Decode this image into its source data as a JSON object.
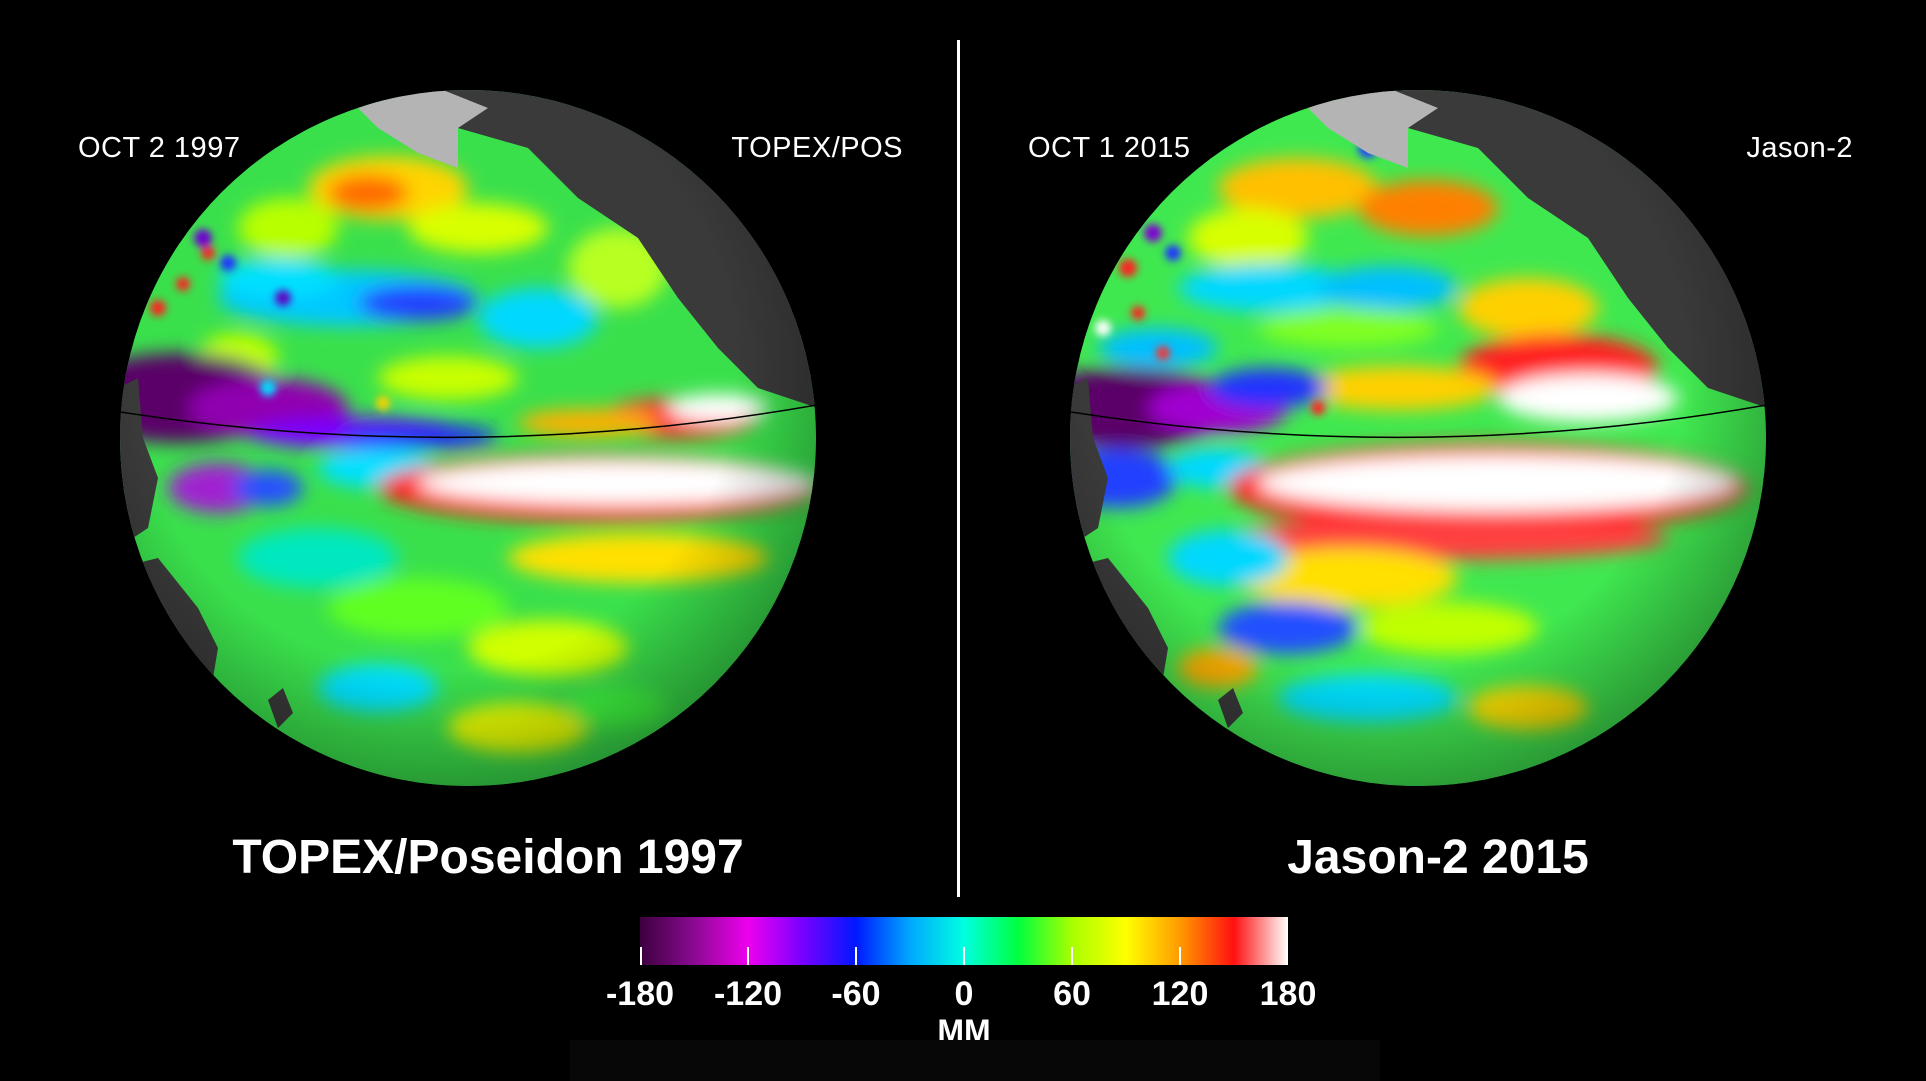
{
  "left_panel": {
    "date": "OCT  2  1997",
    "satellite": "TOPEX/POS",
    "title": "TOPEX/Poseidon 1997"
  },
  "right_panel": {
    "date": "OCT  1  2015",
    "satellite": "Jason-2",
    "title": "Jason-2 2015"
  },
  "colorbar": {
    "unit": "MM",
    "min": -180,
    "max": 180,
    "ticks": [
      "-180",
      "-120",
      "-60",
      "0",
      "60",
      "120",
      "180"
    ],
    "colors": [
      "#3d0040",
      "#8a0a90",
      "#ee00ee",
      "#7a00ff",
      "#0018ff",
      "#00a8ff",
      "#00ffe0",
      "#00ff40",
      "#a8ff00",
      "#ffff00",
      "#ff9a00",
      "#ff1010",
      "#ffffff"
    ]
  },
  "colors": {
    "background": "#000000",
    "land": "#3a3a3a",
    "ice": "#b4b4b4",
    "ocean_base": "#39e84a"
  }
}
